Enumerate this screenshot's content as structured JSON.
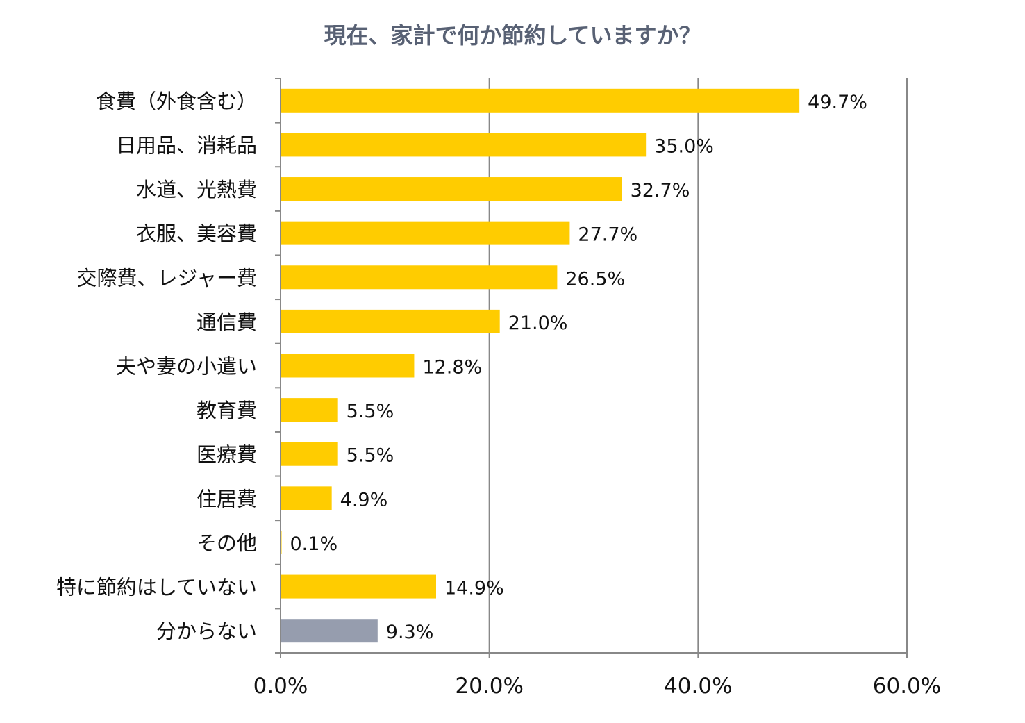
{
  "chart_data": {
    "type": "bar",
    "orientation": "horizontal",
    "title": "現在、家計で何か節約していますか？",
    "categories": [
      "食費（外食含む）",
      "日用品、消耗品",
      "水道、光熱費",
      "衣服、美容費",
      "交際費、レジャー費",
      "通信費",
      "夫や妻の小遣い",
      "教育費",
      "医療費",
      "住居費",
      "その他",
      "特に節約はしていない",
      "分からない"
    ],
    "values": [
      49.7,
      35.0,
      32.7,
      27.7,
      26.5,
      21.0,
      12.8,
      5.5,
      5.5,
      4.9,
      0.1,
      14.9,
      9.3
    ],
    "value_labels": [
      "49.7%",
      "35.0%",
      "32.7%",
      "27.7%",
      "26.5%",
      "21.0%",
      "12.8%",
      "5.5%",
      "5.5%",
      "4.9%",
      "0.1%",
      "14.9%",
      "9.3%"
    ],
    "bar_colors": [
      "#FFCC00",
      "#FFCC00",
      "#FFCC00",
      "#FFCC00",
      "#FFCC00",
      "#FFCC00",
      "#FFCC00",
      "#FFCC00",
      "#FFCC00",
      "#FFCC00",
      "#FFCC00",
      "#FFCC00",
      "#969DAE"
    ],
    "xlim": [
      0,
      60
    ],
    "xticks": [
      0,
      20,
      40,
      60
    ],
    "xtick_labels": [
      "0.0%",
      "20.0%",
      "40.0%",
      "60.0%"
    ],
    "grid": "vertical",
    "xlabel": "",
    "ylabel": ""
  }
}
